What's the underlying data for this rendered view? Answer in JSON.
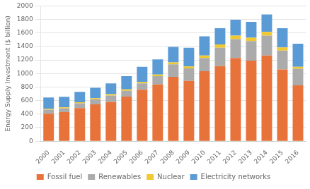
{
  "chart_data": {
    "type": "bar",
    "stacked": true,
    "ylabel": "Energy Supply Investment ($ billion)",
    "categories": [
      "2000",
      "2001",
      "2002",
      "2003",
      "2004",
      "2005",
      "2006",
      "2007",
      "2008",
      "2009",
      "2010",
      "2011",
      "2012",
      "2013",
      "2014",
      "2015",
      "2016"
    ],
    "series": [
      {
        "name": "Fossil fuel",
        "color": "#E8733A",
        "values": [
          405,
          430,
          490,
          545,
          580,
          660,
          760,
          840,
          950,
          890,
          1035,
          1110,
          1230,
          1190,
          1265,
          1060,
          825
        ]
      },
      {
        "name": "Renewables",
        "color": "#ABABAB",
        "values": [
          60,
          55,
          70,
          75,
          95,
          85,
          95,
          120,
          185,
          185,
          195,
          270,
          280,
          290,
          295,
          280,
          245
        ]
      },
      {
        "name": "Nuclear",
        "color": "#F0C832",
        "values": [
          15,
          15,
          15,
          15,
          20,
          20,
          20,
          25,
          30,
          30,
          35,
          50,
          50,
          50,
          55,
          45,
          30
        ]
      },
      {
        "name": "Electricity networks",
        "color": "#5B9BD5",
        "values": [
          165,
          155,
          155,
          155,
          160,
          195,
          225,
          225,
          230,
          275,
          285,
          240,
          235,
          235,
          260,
          285,
          340
        ]
      }
    ],
    "ylim": [
      0,
      2000
    ],
    "yticks": [
      0,
      200,
      400,
      600,
      800,
      1000,
      1200,
      1400,
      1600,
      1800,
      2000
    ],
    "grid": true,
    "legend": "bottom"
  }
}
